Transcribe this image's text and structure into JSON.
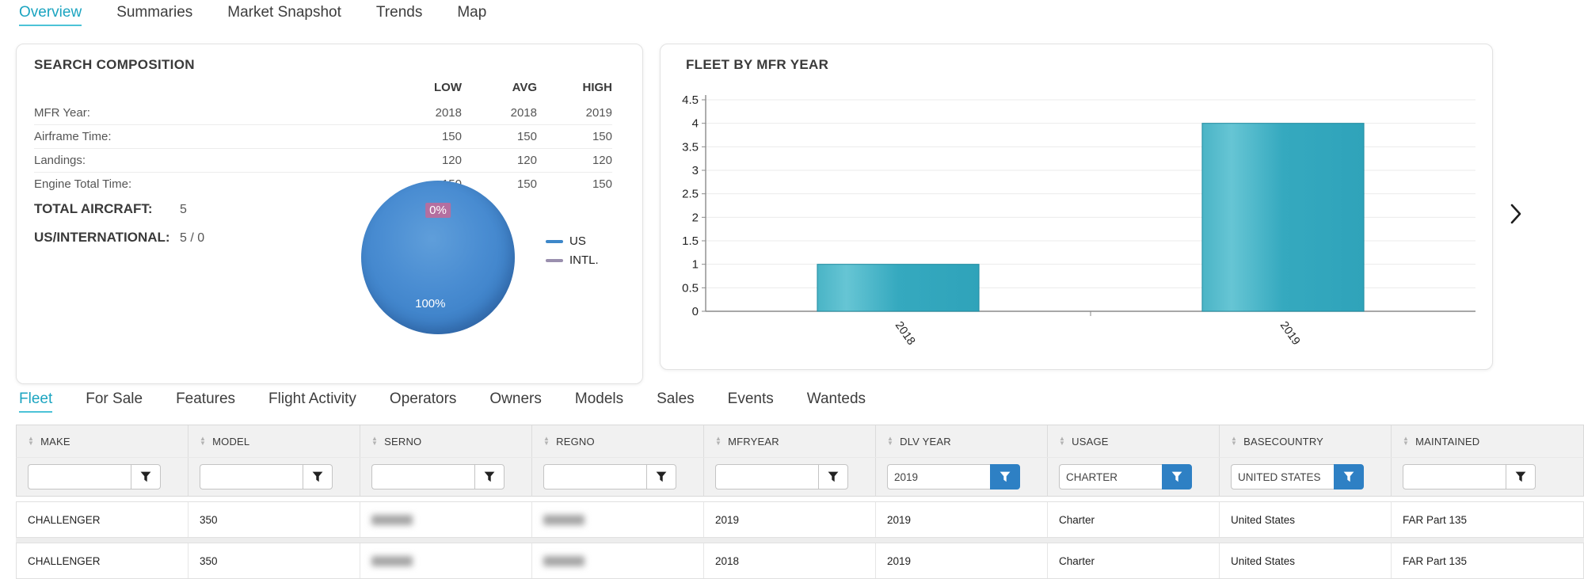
{
  "nav": {
    "tabs": [
      {
        "label": "Overview",
        "active": true
      },
      {
        "label": "Summaries",
        "active": false
      },
      {
        "label": "Market Snapshot",
        "active": false
      },
      {
        "label": "Trends",
        "active": false
      },
      {
        "label": "Map",
        "active": false
      }
    ]
  },
  "search_composition": {
    "title": "SEARCH COMPOSITION",
    "columns": [
      "LOW",
      "AVG",
      "HIGH"
    ],
    "rows": [
      {
        "label": "MFR Year:",
        "values": [
          "2018",
          "2018",
          "2019"
        ]
      },
      {
        "label": "Airframe Time:",
        "values": [
          "150",
          "150",
          "150"
        ]
      },
      {
        "label": "Landings:",
        "values": [
          "120",
          "120",
          "120"
        ]
      },
      {
        "label": "Engine Total Time:",
        "values": [
          "150",
          "150",
          "150"
        ]
      }
    ],
    "totals": [
      {
        "label": "TOTAL AIRCRAFT:",
        "value": "5"
      },
      {
        "label": "US/INTERNATIONAL:",
        "value": "5 / 0"
      }
    ]
  },
  "chart_data": [
    {
      "type": "pie",
      "title": "US/INTERNATIONAL",
      "labels": [
        "US",
        "INTL."
      ],
      "values": [
        100,
        0
      ],
      "value_labels": [
        "100%",
        "0%"
      ],
      "colors": [
        "#3f87cd",
        "#9a8fae"
      ],
      "legend_position": "right",
      "legend": [
        {
          "label": "US",
          "color": "#3d87c9"
        },
        {
          "label": "INTL.",
          "color": "#9a8fae"
        }
      ]
    },
    {
      "type": "bar",
      "title": "FLEET BY MFR YEAR",
      "categories": [
        "2018",
        "2019"
      ],
      "values": [
        1,
        4
      ],
      "ylim": [
        0,
        4.5
      ],
      "ytick_step": 0.5,
      "grid": true,
      "bar_color": "#3ab0c4",
      "xlabel": "",
      "ylabel": ""
    }
  ],
  "carousel": {
    "next_icon": "chevron-right"
  },
  "subtabs": [
    {
      "label": "Fleet",
      "active": true
    },
    {
      "label": "For Sale",
      "active": false
    },
    {
      "label": "Features",
      "active": false
    },
    {
      "label": "Flight Activity",
      "active": false
    },
    {
      "label": "Operators",
      "active": false
    },
    {
      "label": "Owners",
      "active": false
    },
    {
      "label": "Models",
      "active": false
    },
    {
      "label": "Sales",
      "active": false
    },
    {
      "label": "Events",
      "active": false
    },
    {
      "label": "Wanteds",
      "active": false
    }
  ],
  "table": {
    "columns": [
      {
        "label": "MAKE",
        "filter_value": "",
        "filter_active": false
      },
      {
        "label": "MODEL",
        "filter_value": "",
        "filter_active": false
      },
      {
        "label": "SERNO",
        "filter_value": "",
        "filter_active": false
      },
      {
        "label": "REGNO",
        "filter_value": "",
        "filter_active": false
      },
      {
        "label": "MFRYEAR",
        "filter_value": "",
        "filter_active": false
      },
      {
        "label": "DLV YEAR",
        "filter_value": "2019",
        "filter_active": true
      },
      {
        "label": "USAGE",
        "filter_value": "CHARTER",
        "filter_active": true
      },
      {
        "label": "BASECOUNTRY",
        "filter_value": "UNITED STATES",
        "filter_active": true
      },
      {
        "label": "MAINTAINED",
        "filter_value": "",
        "filter_active": false
      }
    ],
    "rows": [
      {
        "cells": [
          {
            "text": "CHALLENGER"
          },
          {
            "text": "350"
          },
          {
            "blurred": true
          },
          {
            "blurred": true
          },
          {
            "text": "2019"
          },
          {
            "text": "2019"
          },
          {
            "text": "Charter"
          },
          {
            "text": "United States"
          },
          {
            "text": "FAR Part 135"
          }
        ]
      },
      {
        "cells": [
          {
            "text": "CHALLENGER"
          },
          {
            "text": "350"
          },
          {
            "blurred": true
          },
          {
            "blurred": true
          },
          {
            "text": "2018"
          },
          {
            "text": "2019"
          },
          {
            "text": "Charter"
          },
          {
            "text": "United States"
          },
          {
            "text": "FAR Part 135"
          }
        ]
      }
    ]
  },
  "icons": {
    "sort": "sort-arrows",
    "filter": "funnel",
    "next": "chevron-right"
  },
  "colors": {
    "accent_teal": "#1ba4c0",
    "filter_active_blue": "#2e80c4",
    "bar_teal": "#3ab0c4",
    "pie_blue": "#3f87cd"
  }
}
